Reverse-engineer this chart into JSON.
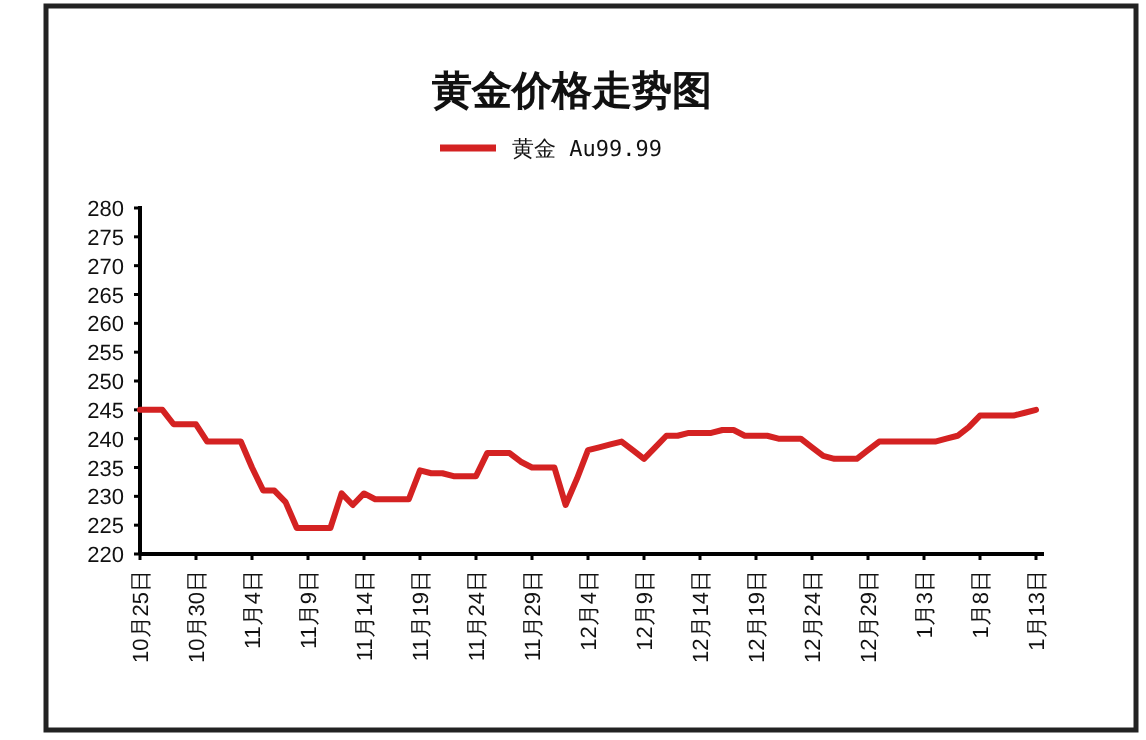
{
  "chart_data": {
    "type": "line",
    "title": "黄金价格走势图",
    "categories": [
      "10月25日",
      null,
      null,
      null,
      null,
      "10月30日",
      null,
      null,
      null,
      null,
      "11月4日",
      null,
      null,
      null,
      null,
      "11月9日",
      null,
      null,
      null,
      null,
      "11月14日",
      null,
      null,
      null,
      null,
      "11月19日",
      null,
      null,
      null,
      null,
      "11月24日",
      null,
      null,
      null,
      null,
      "11月29日",
      null,
      null,
      null,
      null,
      "12月4日",
      null,
      null,
      null,
      null,
      "12月9日",
      null,
      null,
      null,
      null,
      "12月14日",
      null,
      null,
      null,
      null,
      "12月19日",
      null,
      null,
      null,
      null,
      "12月24日",
      null,
      null,
      null,
      null,
      "12月29日",
      null,
      null,
      null,
      null,
      "1月3日",
      null,
      null,
      null,
      null,
      "1月8日",
      null,
      null,
      null,
      null,
      "1月13日"
    ],
    "series": [
      {
        "name": "黄金 Au99.99",
        "color": "#d42222",
        "values": [
          245,
          245,
          245,
          242.5,
          242.5,
          242.5,
          239.5,
          239.5,
          239.5,
          239.5,
          235,
          231,
          231,
          229,
          224.5,
          224.5,
          224.5,
          224.5,
          230.5,
          228.5,
          230.5,
          229.5,
          229.5,
          229.5,
          229.5,
          234.5,
          234,
          234,
          233.5,
          233.5,
          233.5,
          237.5,
          237.5,
          237.5,
          236,
          235,
          235,
          235,
          228.5,
          233,
          238,
          238.5,
          239,
          239.5,
          238,
          236.5,
          238.5,
          240.5,
          240.5,
          241,
          241,
          241,
          241.5,
          241.5,
          240.5,
          240.5,
          240.5,
          240,
          240,
          240,
          238.5,
          237,
          236.5,
          236.5,
          236.5,
          238,
          239.5,
          239.5,
          239.5,
          239.5,
          239.5,
          239.5,
          240,
          240.5,
          242,
          244,
          244,
          244,
          244,
          244.5,
          245
        ]
      }
    ],
    "ylim": [
      220,
      280
    ],
    "yticks": [
      220,
      225,
      230,
      235,
      240,
      245,
      250,
      255,
      260,
      265,
      270,
      275,
      280
    ],
    "legend": "top",
    "marker": "none",
    "line_style": "solid"
  }
}
